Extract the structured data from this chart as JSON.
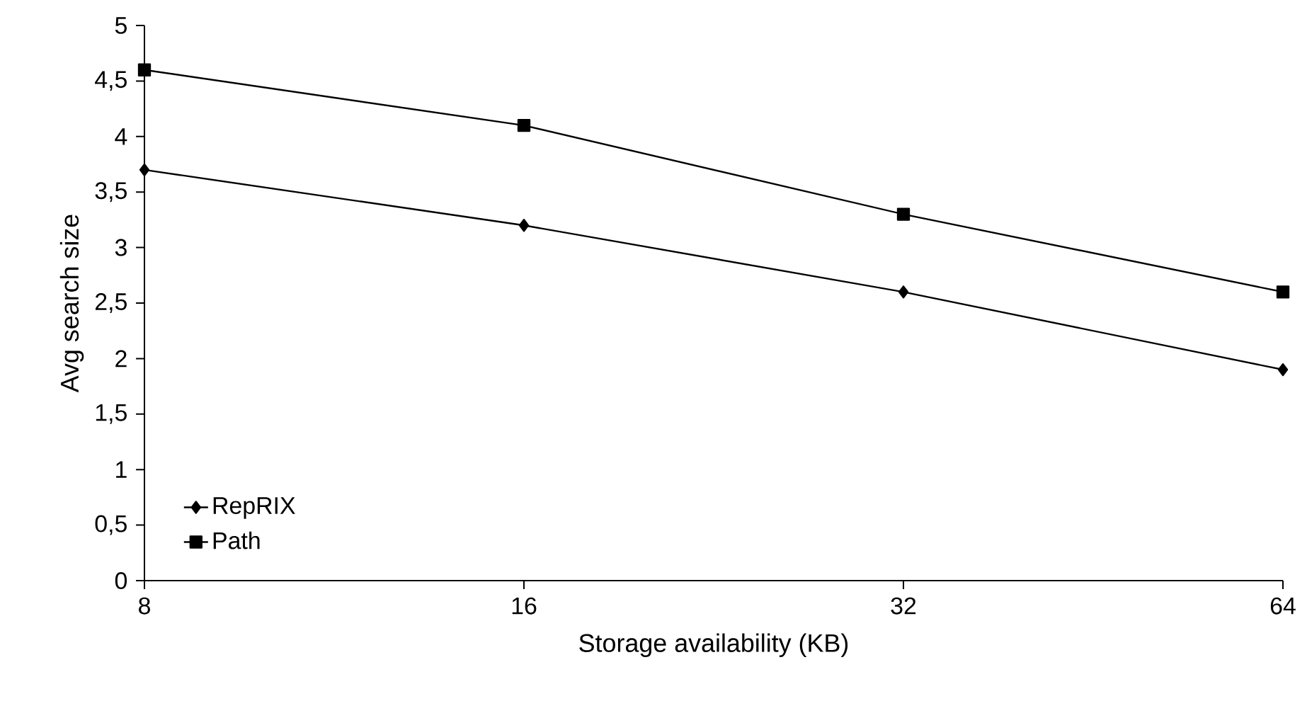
{
  "chart_data": {
    "type": "line",
    "xlabel": "Storage availability (KB)",
    "ylabel": "Avg search size",
    "categories": [
      "8",
      "16",
      "32",
      "64"
    ],
    "series": [
      {
        "name": "RepRIX",
        "color": "#000000",
        "marker": "diamond",
        "values": [
          3.7,
          3.2,
          2.6,
          1.9
        ]
      },
      {
        "name": "Path",
        "color": "#000000",
        "marker": "square",
        "values": [
          4.6,
          4.1,
          3.3,
          2.6
        ]
      }
    ],
    "ylim": [
      0,
      5
    ],
    "yticks": [
      0,
      {
        "value": 0.5,
        "label": "0,5"
      },
      1,
      {
        "value": 1.5,
        "label": "1,5"
      },
      2,
      {
        "value": 2.5,
        "label": "2,5"
      },
      3,
      {
        "value": 3.5,
        "label": "3,5"
      },
      4,
      {
        "value": 4.5,
        "label": "4,5"
      },
      5
    ],
    "grid": false,
    "legend": "bottom left",
    "line_style": "solid"
  }
}
